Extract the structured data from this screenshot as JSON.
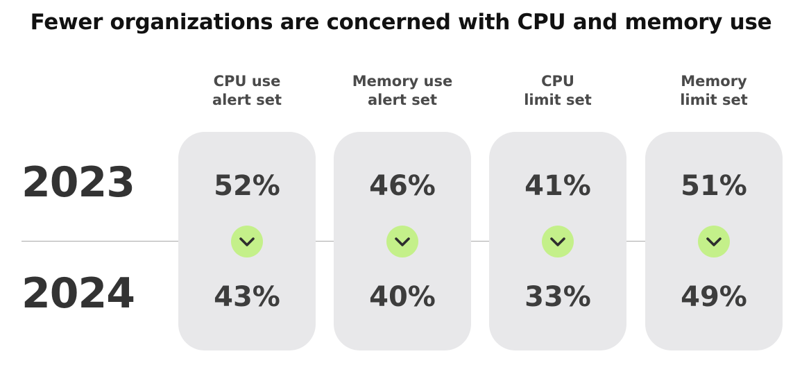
{
  "chart_data": {
    "type": "table",
    "title": "Fewer organizations are concerned with CPU and memory use",
    "categories": [
      {
        "line1": "CPU use",
        "line2": "alert set"
      },
      {
        "line1": "Memory use",
        "line2": "alert set"
      },
      {
        "line1": "CPU",
        "line2": "limit set"
      },
      {
        "line1": "Memory",
        "line2": "limit set"
      }
    ],
    "series": [
      {
        "name": "2023",
        "values": [
          52,
          46,
          41,
          51
        ],
        "labels": [
          "52%",
          "46%",
          "41%",
          "51%"
        ]
      },
      {
        "name": "2024",
        "values": [
          43,
          40,
          33,
          49
        ],
        "labels": [
          "43%",
          "40%",
          "33%",
          "49%"
        ]
      }
    ],
    "unit": "%",
    "change_indicator": "chevron-down-icon"
  },
  "colors": {
    "card": "#e8e8ea",
    "badge": "#c4f08a",
    "text": "#3d3d3d",
    "divider": "#a8a8a8"
  }
}
